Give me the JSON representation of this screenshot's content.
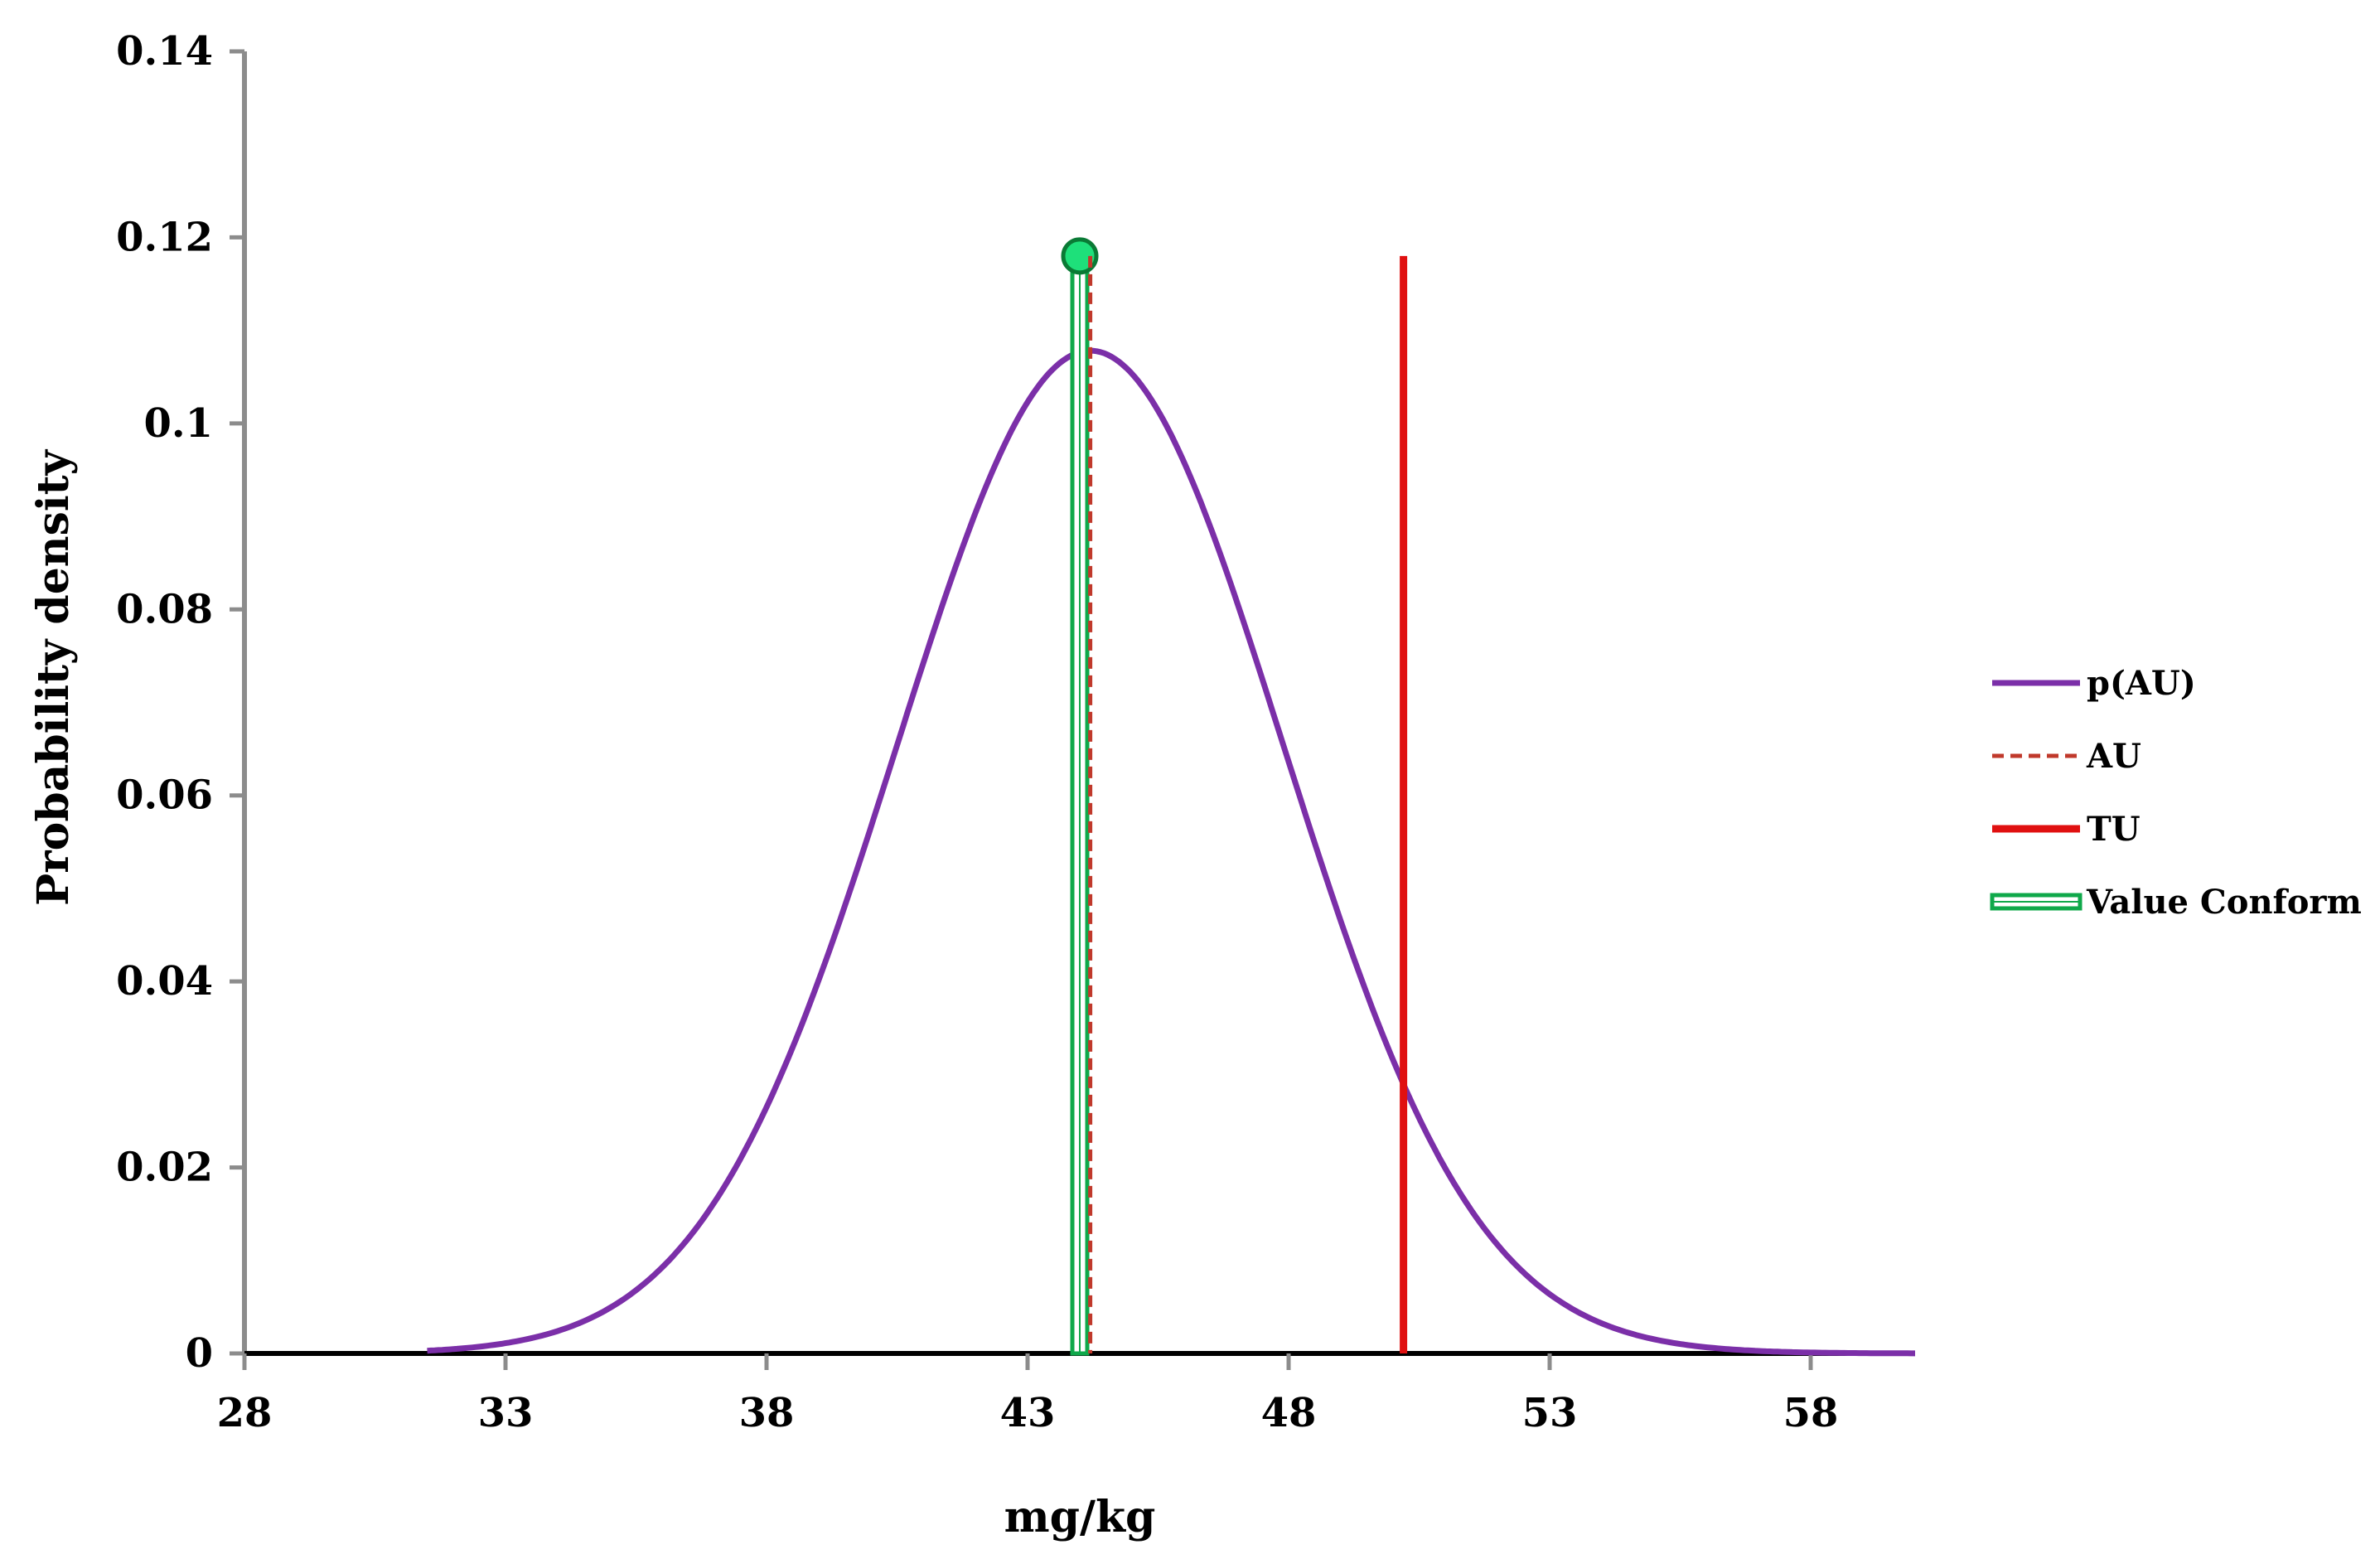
{
  "chart_data": {
    "type": "line",
    "title": "",
    "xlabel": "mg/kg",
    "ylabel": "Probability density",
    "xlim": [
      28,
      60
    ],
    "ylim": [
      0,
      0.14
    ],
    "x_ticks": [
      28,
      33,
      38,
      43,
      48,
      53,
      58
    ],
    "y_ticks": [
      0,
      0.02,
      0.04,
      0.06,
      0.08,
      0.1,
      0.12,
      0.14
    ],
    "y_tick_labels": [
      "0",
      "0.02",
      "0.04",
      "0.06",
      "0.08",
      "0.1",
      "0.12",
      "0.14"
    ],
    "x_tick_labels": [
      "28",
      "33",
      "38",
      "43",
      "48",
      "53",
      "58"
    ],
    "grid": false,
    "legend_position": "right",
    "series": [
      {
        "name": "p(AU)",
        "kind": "normal-curve",
        "color": "#7b2fa8",
        "mean": 44.2,
        "sd": 3.7,
        "x_range": [
          31.5,
          60
        ]
      },
      {
        "name": "AU",
        "kind": "vertical-line",
        "style": "dashed",
        "color": "#c0392b",
        "x": 44.2,
        "y_top": 0.118
      },
      {
        "name": "TU",
        "kind": "vertical-line",
        "style": "solid",
        "color": "#e01010",
        "x": 50.2,
        "y_top": 0.118
      },
      {
        "name": "Value Conform",
        "kind": "vertical-line-marker",
        "style": "double",
        "color": "#0fa84a",
        "marker_color": "#1ee07a",
        "x": 44.0,
        "y_top": 0.118
      }
    ]
  }
}
